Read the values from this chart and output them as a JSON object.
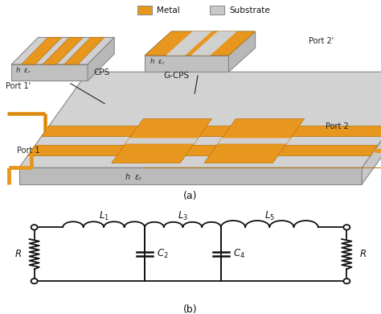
{
  "fig_width": 4.74,
  "fig_height": 3.9,
  "dpi": 100,
  "background": "#ffffff",
  "metal_color": "#E8971E",
  "substrate_top_color": "#D0D0D0",
  "substrate_front_color": "#C0C0C0",
  "substrate_right_color": "#B8B8B8",
  "substrate_edge_color": "#888888",
  "line_color": "#222222",
  "label_a": "(a)",
  "label_b": "(b)",
  "legend_metal": "Metal",
  "legend_substrate": "Substrate",
  "port_labels": [
    "Port 1'",
    "Port 1",
    "Port 2",
    "Port 2'"
  ],
  "cps_label": "CPS",
  "gcps_label": "G-CPS",
  "circuit_labels": {
    "L1": "L",
    "L1_sub": "1",
    "L3": "L",
    "L3_sub": "3",
    "L5": "L",
    "L5_sub": "5",
    "C2": "C",
    "C2_sub": "2",
    "C4": "C",
    "C4_sub": "4",
    "R_left": "R",
    "R_right": "R"
  },
  "circuit_color": "#111111"
}
